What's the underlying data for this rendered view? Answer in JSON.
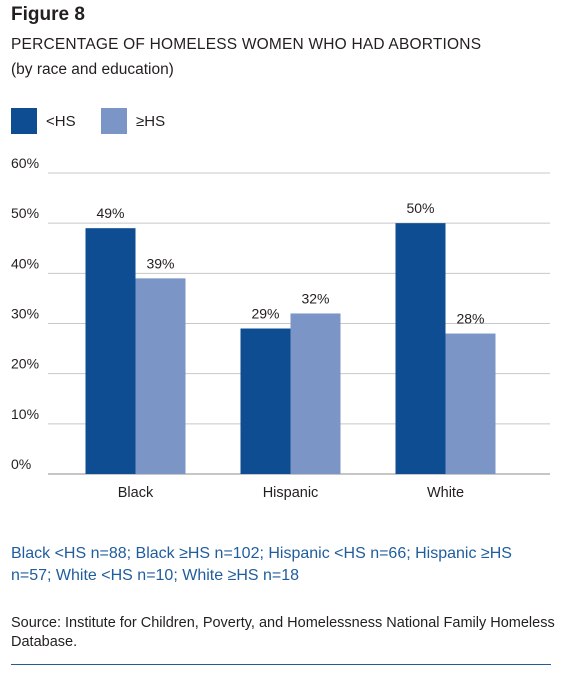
{
  "figure_label": "Figure 8",
  "chart_data": {
    "type": "bar",
    "title": "PERCENTAGE OF HOMELESS WOMEN WHO HAD ABORTIONS",
    "subtitle": "(by race and education)",
    "categories": [
      "Black",
      "Hispanic",
      "White"
    ],
    "series": [
      {
        "name": "<HS",
        "values": [
          49,
          29,
          50
        ],
        "color": "#0e4d92"
      },
      {
        "name": "≥HS",
        "values": [
          39,
          32,
          28
        ],
        "color": "#7b96c6"
      }
    ],
    "value_labels": [
      [
        "49%",
        "29%",
        "50%"
      ],
      [
        "39%",
        "32%",
        "28%"
      ]
    ],
    "yticks": [
      "0%",
      "10%",
      "20%",
      "30%",
      "40%",
      "50%",
      "60%"
    ],
    "ylim": [
      0,
      60
    ],
    "grid": true,
    "legend_position": "top-left"
  },
  "note": "Black <HS n=88; Black ≥HS n=102; Hispanic <HS n=66; Hispanic ≥HS n=57; White <HS n=10; White ≥HS n=18",
  "source": "Source: Institute for Children, Poverty, and Homelessness National Family Homeless Database."
}
